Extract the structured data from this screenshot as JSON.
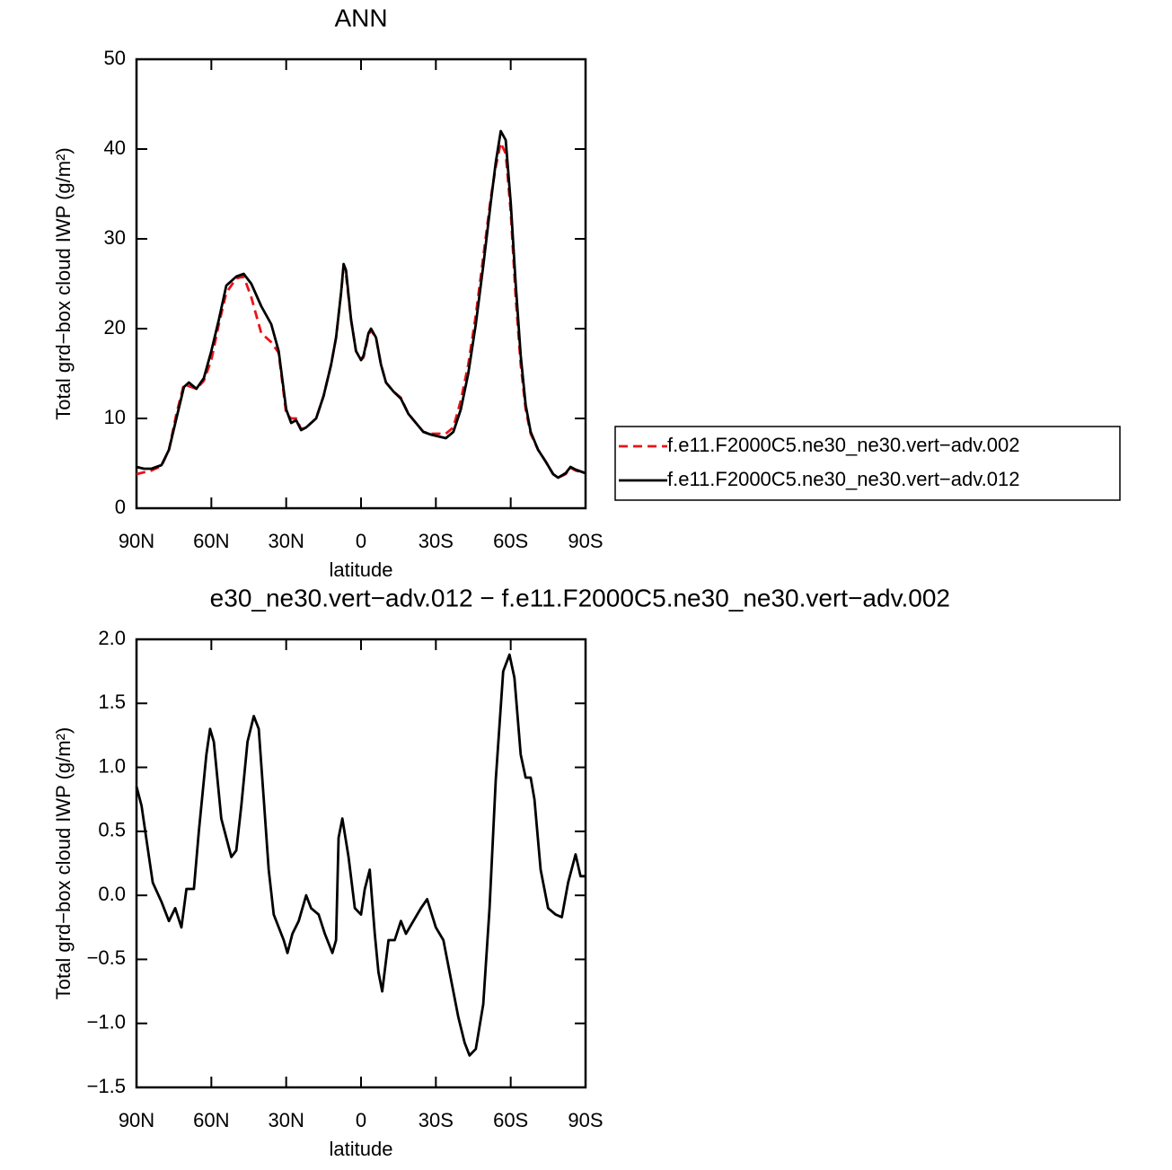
{
  "chart_data": [
    {
      "type": "line",
      "title": "ANN",
      "xlabel": "latitude",
      "ylabel": "Total grd−box cloud IWP (g/m²)",
      "xlim": [
        90,
        -90
      ],
      "xticks": [
        {
          "value": 90,
          "label": "90N"
        },
        {
          "value": 60,
          "label": "60N"
        },
        {
          "value": 30,
          "label": "30N"
        },
        0,
        {
          "value": -30,
          "label": "30S"
        },
        {
          "value": -60,
          "label": "60S"
        },
        {
          "value": -90,
          "label": "90S"
        }
      ],
      "ylim": [
        0,
        50
      ],
      "yticks": [
        0,
        10,
        20,
        30,
        40,
        50
      ],
      "legend": "right",
      "x": [
        90,
        87,
        84,
        80,
        77,
        74,
        71,
        69,
        66,
        63,
        60,
        57,
        54,
        50,
        47,
        44,
        40,
        36,
        33,
        30,
        28,
        26,
        24,
        22,
        18,
        15,
        12,
        10,
        8,
        7,
        6,
        4,
        2,
        0,
        -1,
        -3,
        -4,
        -6,
        -8,
        -10,
        -13,
        -16,
        -19,
        -22,
        -25,
        -28,
        -31,
        -34,
        -37,
        -40,
        -43,
        -46,
        -49,
        -52,
        -54,
        -56,
        -58,
        -60,
        -62,
        -64,
        -66,
        -68,
        -71,
        -74,
        -77,
        -79,
        -82,
        -84,
        -86,
        -90
      ],
      "series": [
        {
          "name": "f.e11.F2000C5.ne30_ne30.vert−adv.002",
          "color": "#e8141a",
          "linestyle": "dashed",
          "values": [
            3.8,
            4,
            4.2,
            4.7,
            6.5,
            10.5,
            13.8,
            13.6,
            13.3,
            14.2,
            16.5,
            20.5,
            24,
            25.6,
            25.8,
            23.5,
            19.5,
            18.5,
            17.3,
            10.5,
            10,
            10,
            8.8,
            9,
            10,
            12.5,
            16,
            19,
            24,
            26.8,
            26,
            21,
            17.5,
            16.5,
            16.8,
            19.3,
            19.8,
            19,
            16,
            14,
            13,
            12.3,
            10.5,
            9.5,
            8.5,
            8.3,
            8.3,
            8.3,
            9,
            12,
            16,
            21.5,
            28,
            34.5,
            38,
            40.7,
            39.5,
            33,
            23.5,
            16,
            11,
            8.3,
            6.5,
            5.2,
            3.8,
            3.4,
            3.8,
            4.5,
            4.2,
            3.9
          ]
        },
        {
          "name": "f.e11.F2000C5.ne30_ne30.vert−adv.012",
          "color": "#000000",
          "linestyle": "solid",
          "values": [
            4.6,
            4.4,
            4.4,
            4.8,
            6.5,
            10,
            13.5,
            14,
            13.3,
            14.5,
            17.5,
            21,
            24.8,
            25.8,
            26.1,
            25,
            22.5,
            20.5,
            17.5,
            11,
            9.5,
            9.8,
            8.7,
            9,
            10,
            12.5,
            16,
            19,
            24,
            27.2,
            26.5,
            21,
            17.5,
            16.5,
            17,
            19.5,
            20,
            19,
            16,
            14,
            13,
            12.2,
            10.5,
            9.5,
            8.5,
            8.2,
            8,
            7.8,
            8.5,
            11,
            15,
            20.5,
            27,
            34,
            38.5,
            42,
            41,
            34,
            25,
            17,
            11.5,
            8.5,
            6.5,
            5.2,
            3.8,
            3.4,
            3.9,
            4.6,
            4.3,
            3.9
          ]
        }
      ]
    },
    {
      "type": "line",
      "title": "e30_ne30.vert−adv.012 − f.e11.F2000C5.ne30_ne30.vert−adv.002",
      "xlabel": "latitude",
      "ylabel": "Total grd−box cloud IWP (g/m²)",
      "xlim": [
        90,
        -90
      ],
      "xticks": [
        {
          "value": 90,
          "label": "90N"
        },
        {
          "value": 60,
          "label": "60N"
        },
        {
          "value": 30,
          "label": "30N"
        },
        0,
        {
          "value": -30,
          "label": "30S"
        },
        {
          "value": -60,
          "label": "60S"
        },
        {
          "value": -90,
          "label": "90S"
        }
      ],
      "ylim": [
        -1.5,
        2
      ],
      "yticks": [
        {
          "value": -1.5,
          "label": "−1.5"
        },
        {
          "value": -1,
          "label": "−1.0"
        },
        {
          "value": -0.5,
          "label": "−0.5"
        },
        {
          "value": 0,
          "label": "0.0"
        },
        0.5,
        {
          "value": 1,
          "label": "1.0"
        },
        1.5,
        {
          "value": 2,
          "label": "2.0"
        }
      ],
      "x": [
        90,
        88,
        85,
        83.5,
        80,
        77,
        74.5,
        72,
        70,
        67,
        65,
        62,
        60.5,
        59,
        56,
        54,
        52,
        50,
        48,
        45.5,
        43,
        41,
        39,
        37,
        35,
        31,
        29.5,
        27.5,
        25,
        22,
        20,
        17,
        14.5,
        11.5,
        10,
        9,
        7.5,
        5,
        2.5,
        0,
        -1.5,
        -3.5,
        -5.5,
        -7,
        -8.5,
        -11,
        -13.5,
        -16,
        -18,
        -21,
        -24,
        -26.5,
        -30,
        -33,
        -36,
        -39,
        -41.5,
        -43.5,
        -46,
        -49,
        -51.5,
        -54,
        -57,
        -59.5,
        -61.5,
        -64,
        -66,
        -68,
        -69.5,
        -72,
        -75,
        -78,
        -80.5,
        -83,
        -86,
        -88,
        -90
      ],
      "series": [
        {
          "color": "#000000",
          "linestyle": "solid",
          "values": [
            0.85,
            0.7,
            0.3,
            0.1,
            -0.05,
            -0.2,
            -0.1,
            -0.25,
            0.05,
            0.05,
            0.5,
            1.1,
            1.3,
            1.2,
            0.6,
            0.45,
            0.3,
            0.35,
            0.7,
            1.2,
            1.4,
            1.3,
            0.75,
            0.2,
            -0.15,
            -0.35,
            -0.45,
            -0.3,
            -0.2,
            0,
            -0.1,
            -0.15,
            -0.3,
            -0.45,
            -0.35,
            0.45,
            0.6,
            0.3,
            -0.1,
            -0.15,
            0.05,
            0.2,
            -0.3,
            -0.6,
            -0.75,
            -0.35,
            -0.35,
            -0.2,
            -0.3,
            -0.2,
            -0.1,
            -0.03,
            -0.25,
            -0.35,
            -0.65,
            -0.95,
            -1.15,
            -1.25,
            -1.2,
            -0.85,
            -0.1,
            0.9,
            1.75,
            1.88,
            1.7,
            1.1,
            0.92,
            0.92,
            0.75,
            0.2,
            -0.1,
            -0.15,
            -0.17,
            0.1,
            0.32,
            0.15,
            0.15
          ]
        }
      ]
    }
  ]
}
